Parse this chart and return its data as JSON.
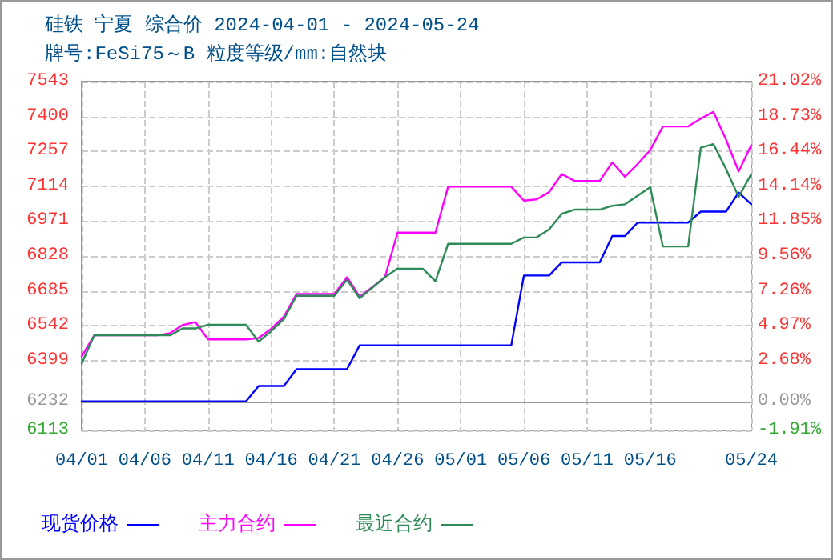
{
  "chart_data": {
    "type": "line",
    "title": "硅铁 宁夏 综合价 2024-04-01 - 2024-05-24",
    "subtitle": "牌号:FeSi75～B 粒度等级/mm:自然块",
    "xlim": [
      "2024-04-01",
      "2024-05-24"
    ],
    "xticks": [
      {
        "value": "2024-04-01",
        "label": "04/01"
      },
      {
        "value": "2024-04-06",
        "label": "04/06"
      },
      {
        "value": "2024-04-11",
        "label": "04/11"
      },
      {
        "value": "2024-04-16",
        "label": "04/16"
      },
      {
        "value": "2024-04-21",
        "label": "04/21"
      },
      {
        "value": "2024-04-26",
        "label": "04/26"
      },
      {
        "value": "2024-05-01",
        "label": "05/01"
      },
      {
        "value": "2024-05-06",
        "label": "05/06"
      },
      {
        "value": "2024-05-11",
        "label": "05/11"
      },
      {
        "value": "2024-05-16",
        "label": "05/16"
      },
      {
        "value": "2024-05-24",
        "label": "05/24"
      }
    ],
    "ylim": [
      6113,
      7543
    ],
    "yticks": [
      6113,
      6232,
      6399,
      6542,
      6685,
      6828,
      6971,
      7114,
      7257,
      7400,
      7543
    ],
    "y2lim": [
      -1.91,
      21.02
    ],
    "y2ticks": [
      {
        "value": -1.91,
        "label": "-1.91%"
      },
      {
        "value": 0,
        "label": "0.00%"
      },
      {
        "value": 2.68,
        "label": "2.68%"
      },
      {
        "value": 4.97,
        "label": "4.97%"
      },
      {
        "value": 7.26,
        "label": "7.26%"
      },
      {
        "value": 9.56,
        "label": "9.56%"
      },
      {
        "value": 11.85,
        "label": "11.85%"
      },
      {
        "value": 14.14,
        "label": "14.14%"
      },
      {
        "value": 16.44,
        "label": "16.44%"
      },
      {
        "value": 18.73,
        "label": "18.73%"
      },
      {
        "value": 21.02,
        "label": "21.02%"
      }
    ],
    "ref_lines": [
      {
        "axis": "y",
        "value": 6232,
        "color": "#999999"
      }
    ],
    "grid": true,
    "legend": "bottom left",
    "marker": "none",
    "line_style": "solid",
    "series": [
      {
        "name": "现货价格",
        "color": "#0000ff",
        "x": [
          "2024-04-01",
          "2024-04-14",
          "2024-04-15",
          "2024-04-17",
          "2024-04-18",
          "2024-04-22",
          "2024-04-23",
          "2024-05-05",
          "2024-05-06",
          "2024-05-08",
          "2024-05-09",
          "2024-05-12",
          "2024-05-13",
          "2024-05-14",
          "2024-05-15",
          "2024-05-19",
          "2024-05-20",
          "2024-05-22",
          "2024-05-23",
          "2024-05-24"
        ],
        "values": [
          6232,
          6232,
          6295,
          6295,
          6364,
          6364,
          6462,
          6462,
          6748,
          6748,
          6802,
          6802,
          6910,
          6910,
          6965,
          6965,
          7010,
          7010,
          7088,
          7040
        ]
      },
      {
        "name": "主力合约",
        "color": "#ff00ff",
        "x": [
          "2024-04-01",
          "2024-04-02",
          "2024-04-07",
          "2024-04-08",
          "2024-04-09",
          "2024-04-10",
          "2024-04-11",
          "2024-04-14",
          "2024-04-15",
          "2024-04-16",
          "2024-04-17",
          "2024-04-18",
          "2024-04-21",
          "2024-04-22",
          "2024-04-23",
          "2024-04-24",
          "2024-04-25",
          "2024-04-26",
          "2024-04-29",
          "2024-04-30",
          "2024-05-05",
          "2024-05-06",
          "2024-05-07",
          "2024-05-08",
          "2024-05-09",
          "2024-05-10",
          "2024-05-12",
          "2024-05-13",
          "2024-05-14",
          "2024-05-15",
          "2024-05-16",
          "2024-05-17",
          "2024-05-19",
          "2024-05-20",
          "2024-05-21",
          "2024-05-22",
          "2024-05-23",
          "2024-05-24"
        ],
        "values": [
          6416,
          6503,
          6503,
          6512,
          6545,
          6557,
          6486,
          6486,
          6492,
          6530,
          6579,
          6672,
          6672,
          6741,
          6661,
          6700,
          6741,
          6924,
          6924,
          7112,
          7112,
          7055,
          7060,
          7090,
          7164,
          7136,
          7136,
          7212,
          7153,
          7205,
          7262,
          7359,
          7359,
          7391,
          7419,
          7305,
          7175,
          7283
        ]
      },
      {
        "name": "最近合约",
        "color": "#2e8b57",
        "x": [
          "2024-04-01",
          "2024-04-02",
          "2024-04-08",
          "2024-04-09",
          "2024-04-10",
          "2024-04-11",
          "2024-04-14",
          "2024-04-15",
          "2024-04-16",
          "2024-04-17",
          "2024-04-18",
          "2024-04-21",
          "2024-04-22",
          "2024-04-23",
          "2024-04-25",
          "2024-04-26",
          "2024-04-28",
          "2024-04-29",
          "2024-04-30",
          "2024-05-05",
          "2024-05-06",
          "2024-05-07",
          "2024-05-08",
          "2024-05-09",
          "2024-05-10",
          "2024-05-12",
          "2024-05-13",
          "2024-05-14",
          "2024-05-16",
          "2024-05-17",
          "2024-05-19",
          "2024-05-20",
          "2024-05-21",
          "2024-05-22",
          "2024-05-23",
          "2024-05-24"
        ],
        "values": [
          6388,
          6503,
          6503,
          6531,
          6531,
          6546,
          6546,
          6477,
          6520,
          6569,
          6665,
          6665,
          6731,
          6655,
          6741,
          6776,
          6776,
          6724,
          6878,
          6878,
          6904,
          6904,
          6937,
          7001,
          7018,
          7018,
          7034,
          7040,
          7110,
          6867,
          6867,
          7272,
          7287,
          7185,
          7071,
          7164
        ]
      }
    ]
  }
}
